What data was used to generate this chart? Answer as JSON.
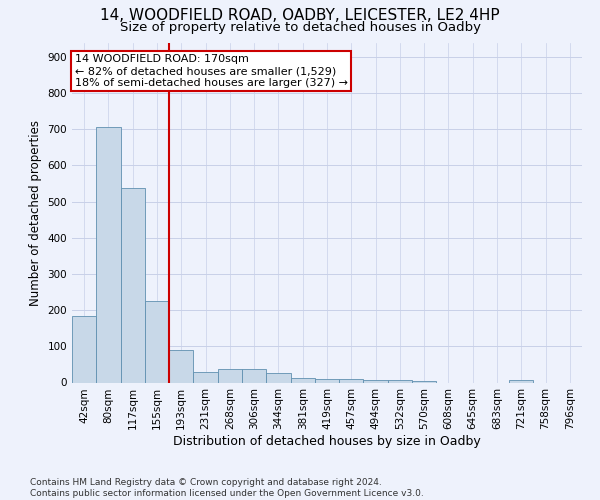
{
  "title1": "14, WOODFIELD ROAD, OADBY, LEICESTER, LE2 4HP",
  "title2": "Size of property relative to detached houses in Oadby",
  "xlabel": "Distribution of detached houses by size in Oadby",
  "ylabel": "Number of detached properties",
  "footnote": "Contains HM Land Registry data © Crown copyright and database right 2024.\nContains public sector information licensed under the Open Government Licence v3.0.",
  "bin_labels": [
    "42sqm",
    "80sqm",
    "117sqm",
    "155sqm",
    "193sqm",
    "231sqm",
    "268sqm",
    "306sqm",
    "344sqm",
    "381sqm",
    "419sqm",
    "457sqm",
    "494sqm",
    "532sqm",
    "570sqm",
    "608sqm",
    "645sqm",
    "683sqm",
    "721sqm",
    "758sqm",
    "796sqm"
  ],
  "bar_heights": [
    185,
    707,
    537,
    225,
    90,
    30,
    38,
    38,
    25,
    13,
    10,
    10,
    8,
    8,
    5,
    0,
    0,
    0,
    8,
    0,
    0
  ],
  "bar_color": "#c8d8e8",
  "bar_edge_color": "#6090b0",
  "property_line_bin_index": 3.5,
  "annotation_text": "14 WOODFIELD ROAD: 170sqm\n← 82% of detached houses are smaller (1,529)\n18% of semi-detached houses are larger (327) →",
  "annotation_box_color": "white",
  "annotation_box_edge_color": "#cc0000",
  "vline_color": "#cc0000",
  "ylim": [
    0,
    940
  ],
  "yticks": [
    0,
    100,
    200,
    300,
    400,
    500,
    600,
    700,
    800,
    900
  ],
  "bg_color": "#eef2fc",
  "grid_color": "#c8d0e8",
  "title1_fontsize": 11,
  "title2_fontsize": 9.5,
  "xlabel_fontsize": 9,
  "ylabel_fontsize": 8.5,
  "footnote_fontsize": 6.5,
  "tick_fontsize": 7.5,
  "annotation_fontsize": 8
}
